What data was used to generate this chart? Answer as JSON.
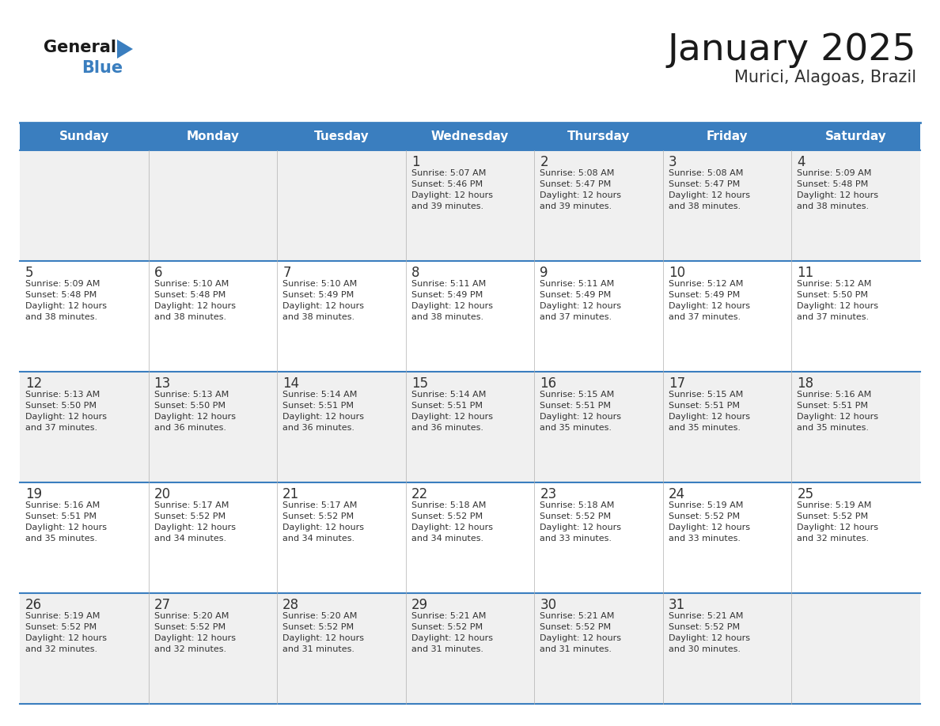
{
  "title": "January 2025",
  "subtitle": "Murici, Alagoas, Brazil",
  "days_of_week": [
    "Sunday",
    "Monday",
    "Tuesday",
    "Wednesday",
    "Thursday",
    "Friday",
    "Saturday"
  ],
  "header_bg": "#3a7ebf",
  "header_text": "#ffffff",
  "row_bg_odd": "#f0f0f0",
  "row_bg_even": "#ffffff",
  "cell_border_color": "#3a7ebf",
  "day_number_color": "#333333",
  "day_text_color": "#333333",
  "title_color": "#1a1a1a",
  "subtitle_color": "#333333",
  "logo_general_color": "#1a1a1a",
  "logo_blue_color": "#3a7ebf",
  "calendar": [
    [
      null,
      null,
      null,
      {
        "day": 1,
        "sunrise": "5:07 AM",
        "sunset": "5:46 PM",
        "dl1": "12 hours",
        "dl2": "and 39 minutes."
      },
      {
        "day": 2,
        "sunrise": "5:08 AM",
        "sunset": "5:47 PM",
        "dl1": "12 hours",
        "dl2": "and 39 minutes."
      },
      {
        "day": 3,
        "sunrise": "5:08 AM",
        "sunset": "5:47 PM",
        "dl1": "12 hours",
        "dl2": "and 38 minutes."
      },
      {
        "day": 4,
        "sunrise": "5:09 AM",
        "sunset": "5:48 PM",
        "dl1": "12 hours",
        "dl2": "and 38 minutes."
      }
    ],
    [
      {
        "day": 5,
        "sunrise": "5:09 AM",
        "sunset": "5:48 PM",
        "dl1": "12 hours",
        "dl2": "and 38 minutes."
      },
      {
        "day": 6,
        "sunrise": "5:10 AM",
        "sunset": "5:48 PM",
        "dl1": "12 hours",
        "dl2": "and 38 minutes."
      },
      {
        "day": 7,
        "sunrise": "5:10 AM",
        "sunset": "5:49 PM",
        "dl1": "12 hours",
        "dl2": "and 38 minutes."
      },
      {
        "day": 8,
        "sunrise": "5:11 AM",
        "sunset": "5:49 PM",
        "dl1": "12 hours",
        "dl2": "and 38 minutes."
      },
      {
        "day": 9,
        "sunrise": "5:11 AM",
        "sunset": "5:49 PM",
        "dl1": "12 hours",
        "dl2": "and 37 minutes."
      },
      {
        "day": 10,
        "sunrise": "5:12 AM",
        "sunset": "5:49 PM",
        "dl1": "12 hours",
        "dl2": "and 37 minutes."
      },
      {
        "day": 11,
        "sunrise": "5:12 AM",
        "sunset": "5:50 PM",
        "dl1": "12 hours",
        "dl2": "and 37 minutes."
      }
    ],
    [
      {
        "day": 12,
        "sunrise": "5:13 AM",
        "sunset": "5:50 PM",
        "dl1": "12 hours",
        "dl2": "and 37 minutes."
      },
      {
        "day": 13,
        "sunrise": "5:13 AM",
        "sunset": "5:50 PM",
        "dl1": "12 hours",
        "dl2": "and 36 minutes."
      },
      {
        "day": 14,
        "sunrise": "5:14 AM",
        "sunset": "5:51 PM",
        "dl1": "12 hours",
        "dl2": "and 36 minutes."
      },
      {
        "day": 15,
        "sunrise": "5:14 AM",
        "sunset": "5:51 PM",
        "dl1": "12 hours",
        "dl2": "and 36 minutes."
      },
      {
        "day": 16,
        "sunrise": "5:15 AM",
        "sunset": "5:51 PM",
        "dl1": "12 hours",
        "dl2": "and 35 minutes."
      },
      {
        "day": 17,
        "sunrise": "5:15 AM",
        "sunset": "5:51 PM",
        "dl1": "12 hours",
        "dl2": "and 35 minutes."
      },
      {
        "day": 18,
        "sunrise": "5:16 AM",
        "sunset": "5:51 PM",
        "dl1": "12 hours",
        "dl2": "and 35 minutes."
      }
    ],
    [
      {
        "day": 19,
        "sunrise": "5:16 AM",
        "sunset": "5:51 PM",
        "dl1": "12 hours",
        "dl2": "and 35 minutes."
      },
      {
        "day": 20,
        "sunrise": "5:17 AM",
        "sunset": "5:52 PM",
        "dl1": "12 hours",
        "dl2": "and 34 minutes."
      },
      {
        "day": 21,
        "sunrise": "5:17 AM",
        "sunset": "5:52 PM",
        "dl1": "12 hours",
        "dl2": "and 34 minutes."
      },
      {
        "day": 22,
        "sunrise": "5:18 AM",
        "sunset": "5:52 PM",
        "dl1": "12 hours",
        "dl2": "and 34 minutes."
      },
      {
        "day": 23,
        "sunrise": "5:18 AM",
        "sunset": "5:52 PM",
        "dl1": "12 hours",
        "dl2": "and 33 minutes."
      },
      {
        "day": 24,
        "sunrise": "5:19 AM",
        "sunset": "5:52 PM",
        "dl1": "12 hours",
        "dl2": "and 33 minutes."
      },
      {
        "day": 25,
        "sunrise": "5:19 AM",
        "sunset": "5:52 PM",
        "dl1": "12 hours",
        "dl2": "and 32 minutes."
      }
    ],
    [
      {
        "day": 26,
        "sunrise": "5:19 AM",
        "sunset": "5:52 PM",
        "dl1": "12 hours",
        "dl2": "and 32 minutes."
      },
      {
        "day": 27,
        "sunrise": "5:20 AM",
        "sunset": "5:52 PM",
        "dl1": "12 hours",
        "dl2": "and 32 minutes."
      },
      {
        "day": 28,
        "sunrise": "5:20 AM",
        "sunset": "5:52 PM",
        "dl1": "12 hours",
        "dl2": "and 31 minutes."
      },
      {
        "day": 29,
        "sunrise": "5:21 AM",
        "sunset": "5:52 PM",
        "dl1": "12 hours",
        "dl2": "and 31 minutes."
      },
      {
        "day": 30,
        "sunrise": "5:21 AM",
        "sunset": "5:52 PM",
        "dl1": "12 hours",
        "dl2": "and 31 minutes."
      },
      {
        "day": 31,
        "sunrise": "5:21 AM",
        "sunset": "5:52 PM",
        "dl1": "12 hours",
        "dl2": "and 30 minutes."
      },
      null
    ]
  ]
}
